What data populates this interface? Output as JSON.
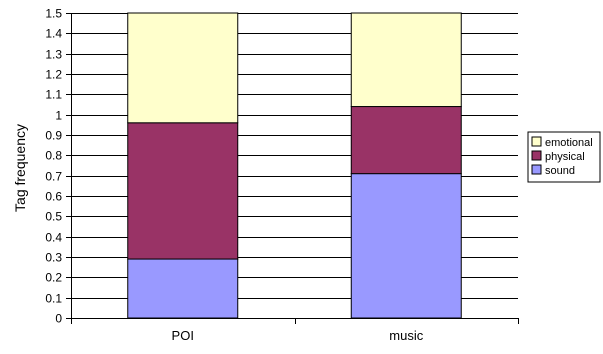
{
  "chart_data": {
    "type": "bar",
    "stacked": true,
    "title": "",
    "xlabel": "",
    "ylabel": "Tag frequency",
    "ylim": [
      0,
      1.5
    ],
    "ytick_step": 0.1,
    "yticks": [
      "0",
      "0.1",
      "0.2",
      "0.3",
      "0.4",
      "0.5",
      "0.6",
      "0.7",
      "0.8",
      "0.9",
      "1",
      "1.1",
      "1.2",
      "1.3",
      "1.4",
      "1.5"
    ],
    "grid": true,
    "legend_position": "right",
    "categories": [
      "POI",
      "music"
    ],
    "series": [
      {
        "name": "sound",
        "color": "#9999ff",
        "values": [
          0.29,
          0.71
        ]
      },
      {
        "name": "physical",
        "color": "#993366",
        "values": [
          0.67,
          0.33
        ]
      },
      {
        "name": "emotional",
        "color": "#ffffcc",
        "values": [
          0.54,
          0.46
        ]
      }
    ],
    "legend_order": [
      "emotional",
      "physical",
      "sound"
    ]
  }
}
